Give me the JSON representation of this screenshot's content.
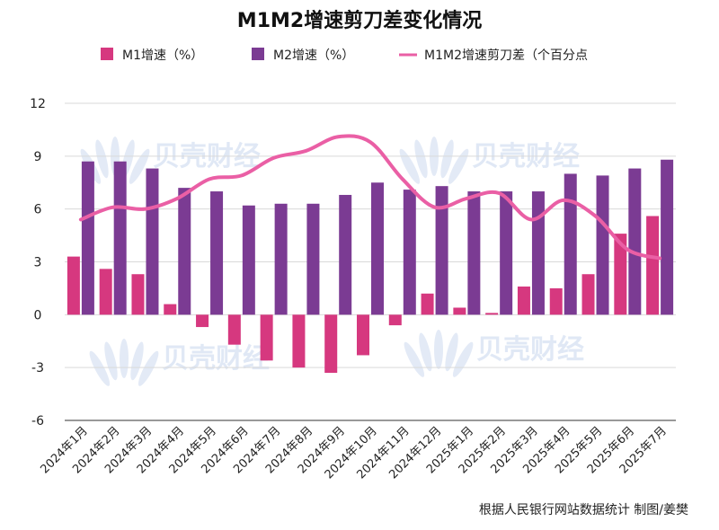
{
  "colors": {
    "m1": "#d6387f",
    "m2": "#7b3b93",
    "gap": "#ea5fa5",
    "grid": "#d9d9d9",
    "watermark": "#c7d6ee"
  },
  "watermark_text": "贝壳财经",
  "source_note": "根据人民银行网站数据统计 制图/姜樊",
  "chart_data": {
    "type": "bar",
    "title": "M1M2增速剪刀差变化情况",
    "legend_position": "top",
    "grid": true,
    "ylim": [
      -6,
      12
    ],
    "yticks": [
      -6,
      -3,
      0,
      3,
      6,
      9,
      12
    ],
    "categories": [
      "2024年1月",
      "2024年2月",
      "2024年3月",
      "2024年4月",
      "2024年5月",
      "2024年6月",
      "2024年7月",
      "2024年8月",
      "2024年9月",
      "2024年10月",
      "2024年11月",
      "2024年12月",
      "2025年1月",
      "2025年2月",
      "2025年3月",
      "2025年4月",
      "2025年5月",
      "2025年6月",
      "2025年7月"
    ],
    "series": [
      {
        "name": "M1增速（%）",
        "type": "bar",
        "values": [
          3.3,
          2.6,
          2.3,
          0.6,
          -0.7,
          -1.7,
          -2.6,
          -3.0,
          -3.3,
          -2.3,
          -0.6,
          1.2,
          0.4,
          0.1,
          1.6,
          1.5,
          2.3,
          4.6,
          5.6
        ]
      },
      {
        "name": "M2增速（%）",
        "type": "bar",
        "values": [
          8.7,
          8.7,
          8.3,
          7.2,
          7.0,
          6.2,
          6.3,
          6.3,
          6.8,
          7.5,
          7.1,
          7.3,
          7.0,
          7.0,
          7.0,
          8.0,
          7.9,
          8.3,
          8.8
        ]
      },
      {
        "name": "M1M2增速剪刀差（个百分点",
        "type": "line",
        "values": [
          5.4,
          6.1,
          6.0,
          6.6,
          7.7,
          7.9,
          8.9,
          9.3,
          10.1,
          9.8,
          7.7,
          6.1,
          6.6,
          6.9,
          5.4,
          6.5,
          5.6,
          3.7,
          3.2
        ]
      }
    ]
  }
}
